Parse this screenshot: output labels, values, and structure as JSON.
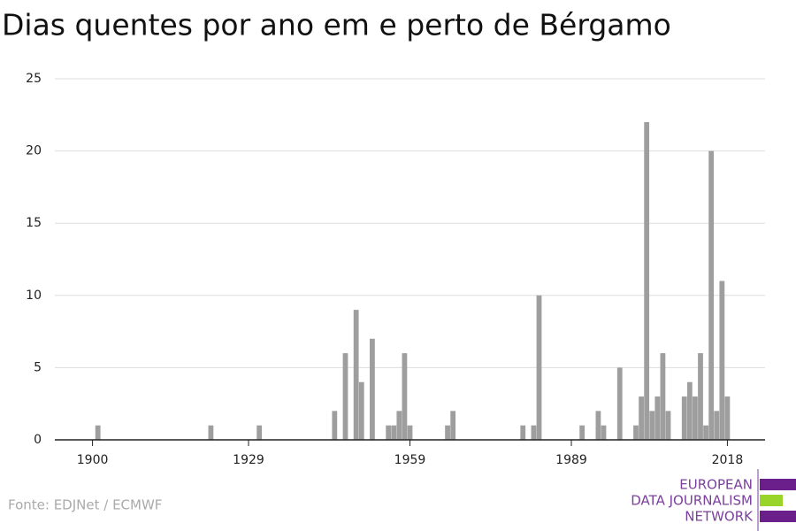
{
  "chart_data": {
    "type": "bar",
    "title": "Dias quentes por ano em e perto de Bérgamo",
    "x": [
      1901,
      1922,
      1931,
      1945,
      1947,
      1949,
      1950,
      1952,
      1955,
      1956,
      1957,
      1958,
      1959,
      1966,
      1967,
      1980,
      1982,
      1983,
      1991,
      1994,
      1995,
      1998,
      2001,
      2002,
      2003,
      2004,
      2005,
      2006,
      2007,
      2010,
      2011,
      2012,
      2013,
      2014,
      2015,
      2016,
      2017,
      2018
    ],
    "values": [
      1,
      1,
      1,
      2,
      6,
      9,
      4,
      7,
      1,
      1,
      2,
      6,
      1,
      1,
      2,
      1,
      1,
      10,
      1,
      2,
      1,
      5,
      1,
      3,
      22,
      2,
      3,
      6,
      2,
      3,
      4,
      3,
      6,
      1,
      20,
      2,
      11,
      3
    ],
    "color": "#9e9e9e",
    "xlim": [
      1893,
      2025
    ],
    "xticks": [
      1900,
      1929,
      1959,
      1989,
      2018
    ],
    "ylim": [
      0,
      25
    ],
    "yticks": [
      0,
      5,
      10,
      15,
      20,
      25
    ],
    "grid": true,
    "source": "Fonte: EDJNet / ECMWF",
    "logo": [
      "EUROPEAN",
      "DATA JOURNALISM",
      "NETWORK"
    ]
  }
}
